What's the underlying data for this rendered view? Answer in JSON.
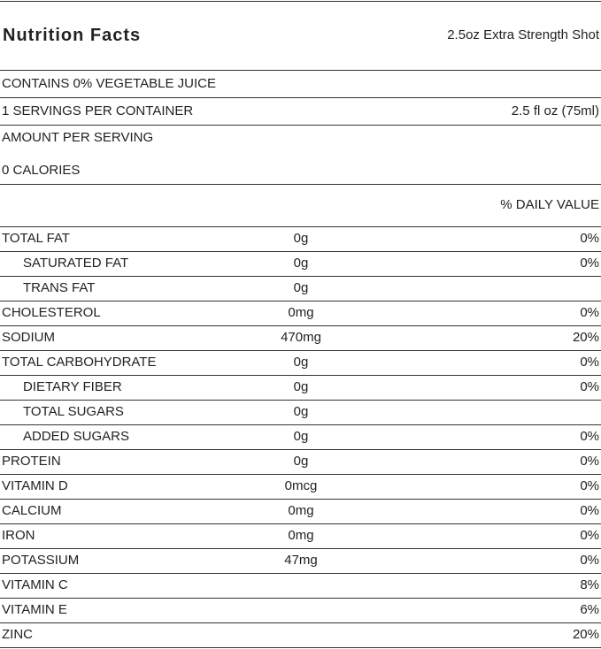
{
  "header": {
    "title": "Nutrition Facts",
    "subtitle": "2.5oz Extra Strength Shot"
  },
  "juice": "CONTAINS 0% VEGETABLE JUICE",
  "servings": {
    "label": "1 SERVINGS PER CONTAINER",
    "size": "2.5 fl oz (75ml)"
  },
  "amount_per_serving": "AMOUNT PER SERVING",
  "calories": "0 CALORIES",
  "daily_value_header": "% DAILY VALUE",
  "table": {
    "rows": [
      {
        "name": "TOTAL FAT",
        "amount": "0g",
        "dv": "0%",
        "sub": [
          {
            "name": "SATURATED FAT",
            "amount": "0g",
            "dv": "0%"
          },
          {
            "name": "TRANS FAT",
            "amount": "0g"
          }
        ]
      },
      {
        "name": "CHOLESTEROL",
        "amount": "0mg",
        "dv": "0%"
      },
      {
        "name": "SODIUM",
        "amount": "470mg",
        "dv": "20%"
      },
      {
        "name": "TOTAL CARBOHYDRATE",
        "amount": "0g",
        "dv": "0%",
        "sub": [
          {
            "name": "DIETARY FIBER",
            "amount": "0g",
            "dv": "0%"
          },
          {
            "name": "TOTAL SUGARS",
            "amount": "0g"
          },
          {
            "name": "ADDED SUGARS",
            "amount": "0g",
            "dv": "0%"
          }
        ]
      },
      {
        "name": "PROTEIN",
        "amount": "0g",
        "dv": "0%"
      },
      {
        "name": "VITAMIN D",
        "amount": "0mcg",
        "dv": "0%"
      },
      {
        "name": "CALCIUM",
        "amount": "0mg",
        "dv": "0%"
      },
      {
        "name": "IRON",
        "amount": "0mg",
        "dv": "0%"
      },
      {
        "name": "POTASSIUM",
        "amount": "47mg",
        "dv": "0%"
      },
      {
        "name": "VITAMIN C",
        "dv": "8%"
      },
      {
        "name": "VITAMIN E",
        "dv": "6%"
      },
      {
        "name": "ZINC",
        "dv": "20%"
      }
    ]
  }
}
